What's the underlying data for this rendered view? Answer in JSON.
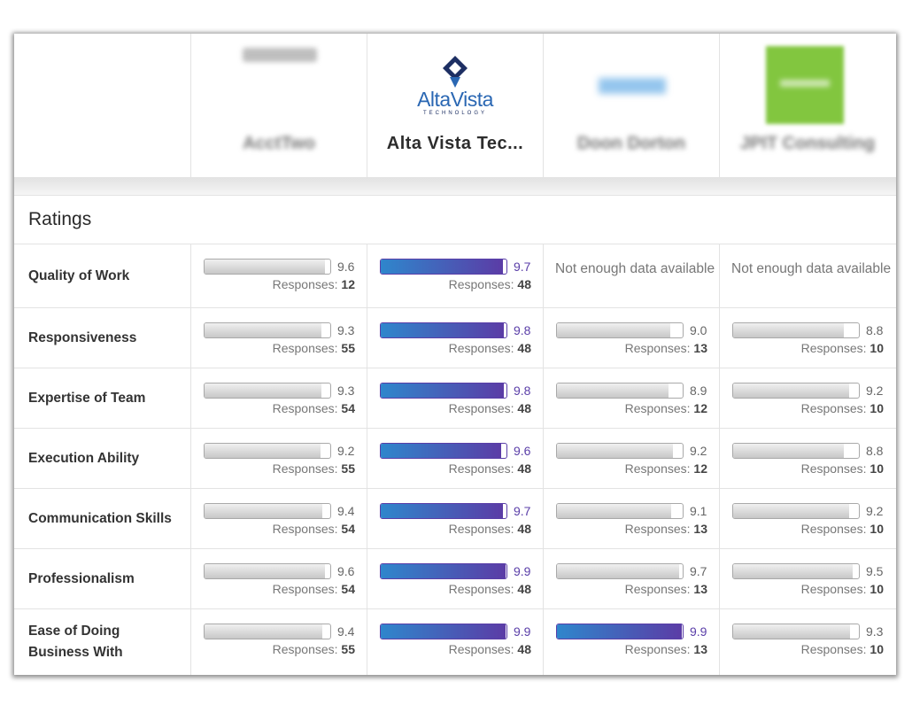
{
  "providers": [
    {
      "name": "AcctTwo",
      "blurred": true
    },
    {
      "name": "Alta Vista Tec...",
      "blurred": false,
      "logo_text": "AltaVista",
      "logo_subtext": "TECHNOLOGY"
    },
    {
      "name": "Doon Dorton",
      "blurred": true
    },
    {
      "name": "JPIT Consulting",
      "blurred": true
    }
  ],
  "section_title": "Ratings",
  "responses_label": "Responses:",
  "not_enough_label": "Not enough data available",
  "colors": {
    "highlight_start": "#2f86cc",
    "highlight_end": "#5b3ca6",
    "highlight_text": "#5a3ea8"
  },
  "rating_scale_max": 10,
  "rows": [
    {
      "label": "Quality of Work",
      "cells": [
        {
          "score": "9.6",
          "responses": "12",
          "highlight": false
        },
        {
          "score": "9.7",
          "responses": "48",
          "highlight": true
        },
        {
          "na": true
        },
        {
          "na": true
        }
      ]
    },
    {
      "label": "Responsiveness",
      "cells": [
        {
          "score": "9.3",
          "responses": "55",
          "highlight": false
        },
        {
          "score": "9.8",
          "responses": "48",
          "highlight": true
        },
        {
          "score": "9.0",
          "responses": "13",
          "highlight": false
        },
        {
          "score": "8.8",
          "responses": "10",
          "highlight": false
        }
      ]
    },
    {
      "label": "Expertise of Team",
      "cells": [
        {
          "score": "9.3",
          "responses": "54",
          "highlight": false
        },
        {
          "score": "9.8",
          "responses": "48",
          "highlight": true
        },
        {
          "score": "8.9",
          "responses": "12",
          "highlight": false
        },
        {
          "score": "9.2",
          "responses": "10",
          "highlight": false
        }
      ]
    },
    {
      "label": "Execution Ability",
      "cells": [
        {
          "score": "9.2",
          "responses": "55",
          "highlight": false
        },
        {
          "score": "9.6",
          "responses": "48",
          "highlight": true
        },
        {
          "score": "9.2",
          "responses": "12",
          "highlight": false
        },
        {
          "score": "8.8",
          "responses": "10",
          "highlight": false
        }
      ]
    },
    {
      "label": "Communication Skills",
      "cells": [
        {
          "score": "9.4",
          "responses": "54",
          "highlight": false
        },
        {
          "score": "9.7",
          "responses": "48",
          "highlight": true
        },
        {
          "score": "9.1",
          "responses": "13",
          "highlight": false
        },
        {
          "score": "9.2",
          "responses": "10",
          "highlight": false
        }
      ]
    },
    {
      "label": "Professionalism",
      "cells": [
        {
          "score": "9.6",
          "responses": "54",
          "highlight": false
        },
        {
          "score": "9.9",
          "responses": "48",
          "highlight": true
        },
        {
          "score": "9.7",
          "responses": "13",
          "highlight": false
        },
        {
          "score": "9.5",
          "responses": "10",
          "highlight": false
        }
      ]
    },
    {
      "label": "Ease of Doing Business With",
      "cells": [
        {
          "score": "9.4",
          "responses": "55",
          "highlight": false
        },
        {
          "score": "9.9",
          "responses": "48",
          "highlight": true
        },
        {
          "score": "9.9",
          "responses": "13",
          "highlight": true
        },
        {
          "score": "9.3",
          "responses": "10",
          "highlight": false
        }
      ]
    }
  ]
}
